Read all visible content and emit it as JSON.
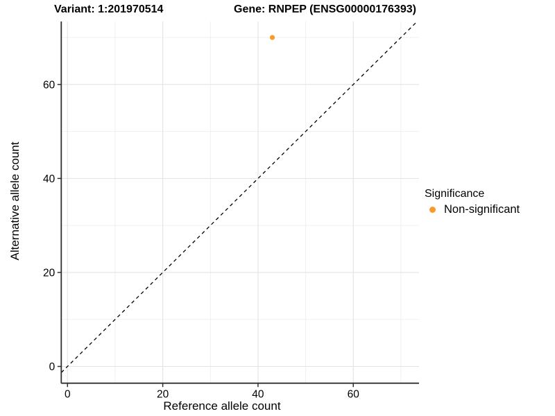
{
  "titles": {
    "variant": "Variant: 1:201970514",
    "gene": "Gene: RNPEP (ENSG00000176393)"
  },
  "chart_data": {
    "type": "scatter",
    "title_left": "Variant: 1:201970514",
    "title_right": "Gene: RNPEP (ENSG00000176393)",
    "xlabel": "Reference allele count",
    "ylabel": "Alternative allele count",
    "xlim": [
      -1.31,
      73.8
    ],
    "ylim": [
      -3.57,
      73.4
    ],
    "x_ticks": [
      0,
      20,
      40,
      60
    ],
    "y_ticks": [
      0,
      20,
      40,
      60
    ],
    "x_minor_ticks": [
      10,
      30,
      50,
      70
    ],
    "y_minor_ticks": [
      10,
      30,
      50,
      70
    ],
    "grid": true,
    "points": [
      {
        "x": 43,
        "y": 70,
        "series": "Non-significant"
      }
    ],
    "reference_line": {
      "type": "identity",
      "style": "dashed",
      "color": "#000000"
    },
    "legend": {
      "title": "Significance",
      "position": "right",
      "entries": [
        {
          "label": "Non-significant",
          "color": "#F99B2B"
        }
      ]
    }
  },
  "colors": {
    "point": "#F99B2B",
    "grid_major": "#e3e3e3",
    "grid_minor": "#efefef",
    "axis_line": "#2f2f2f",
    "text": "#000000",
    "background": "#ffffff"
  }
}
